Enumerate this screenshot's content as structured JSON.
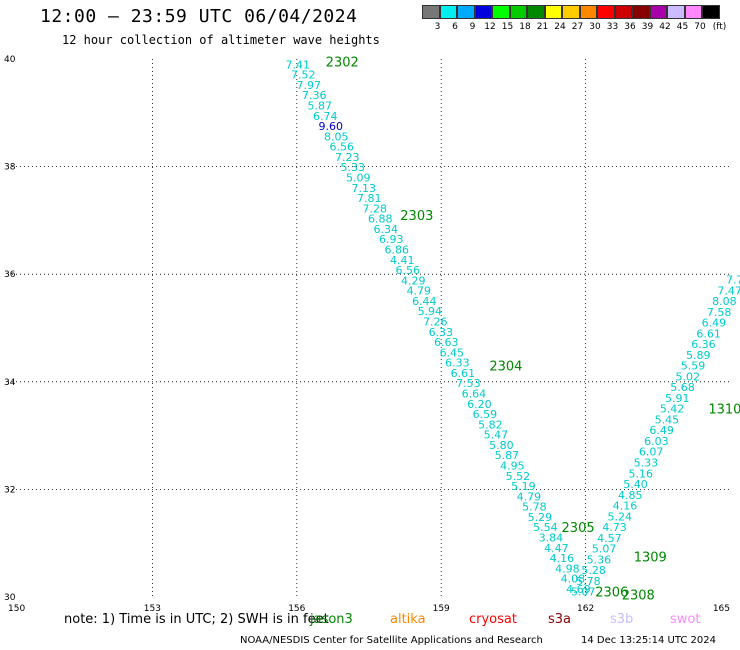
{
  "header": {
    "title": "12:00 – 23:59 UTC 06/04/2024",
    "subtitle": "12 hour collection of altimeter wave heights"
  },
  "legend": {
    "unit": "(ft)",
    "bins": [
      {
        "label": "3",
        "color": "#777777"
      },
      {
        "label": "6",
        "color": "#00eeee"
      },
      {
        "label": "9",
        "color": "#00aaff"
      },
      {
        "label": "12",
        "color": "#0000dd"
      },
      {
        "label": "15",
        "color": "#00ff00"
      },
      {
        "label": "18",
        "color": "#00cc00"
      },
      {
        "label": "21",
        "color": "#008800"
      },
      {
        "label": "24",
        "color": "#ffff00"
      },
      {
        "label": "27",
        "color": "#ffcc00"
      },
      {
        "label": "30",
        "color": "#ff8800"
      },
      {
        "label": "33",
        "color": "#ff0000"
      },
      {
        "label": "36",
        "color": "#cc0000"
      },
      {
        "label": "39",
        "color": "#880000"
      },
      {
        "label": "42",
        "color": "#aa00aa"
      },
      {
        "label": "45",
        "color": "#ccbbff"
      },
      {
        "label": "70",
        "color": "#ff88ff"
      },
      {
        "label": "",
        "color": "#000000"
      }
    ]
  },
  "map": {
    "lon_ticks": [
      "150",
      "153",
      "156",
      "159",
      "162",
      "165"
    ],
    "lat_ticks": [
      "40",
      "38",
      "36",
      "34",
      "32",
      "30"
    ],
    "lon_range": [
      150,
      165
    ],
    "lat_range": [
      30,
      40
    ],
    "grid": "dotted",
    "colors": {
      "swh_label": "#00cccc",
      "swh_high": "#0000cc",
      "pass_label": "#008800"
    }
  },
  "chart_data": {
    "type": "scatter",
    "x_unit": "longitude",
    "y_unit": "latitude",
    "tracks": [
      {
        "name": "descending",
        "start": [
          156.02,
          39.9
        ],
        "end": [
          161.85,
          30.15
        ],
        "values": [
          "7.41",
          "7.52",
          "7.97",
          "7.36",
          "5.87",
          "6.74",
          "9.60",
          "8.05",
          "6.56",
          "7.23",
          "5.33",
          "5.09",
          "7.13",
          "7.81",
          "7.28",
          "6.88",
          "6.34",
          "6.93",
          "6.86",
          "4.41",
          "6.56",
          "4.29",
          "4.79",
          "6.44",
          "5.94",
          "7.26",
          "6.33",
          "6.63",
          "6.45",
          "6.33",
          "6.61",
          "7.53",
          "6.64",
          "6.20",
          "6.59",
          "5.82",
          "5.47",
          "5.80",
          "5.87",
          "4.95",
          "5.52",
          "5.19",
          "4.79",
          "5.78",
          "5.29",
          "5.54",
          "3.84",
          "4.47",
          "4.16",
          "4.98",
          "4.08",
          "4.69"
        ]
      },
      {
        "name": "ascending",
        "start": [
          161.95,
          30.1
        ],
        "end": [
          165.1,
          35.9
        ],
        "values": [
          "5.07",
          "5.78",
          "5.28",
          "5.36",
          "5.07",
          "4.57",
          "4.73",
          "5.24",
          "4.16",
          "4.85",
          "5.40",
          "5.16",
          "5.33",
          "6.07",
          "6.03",
          "6.49",
          "5.45",
          "5.42",
          "5.91",
          "5.68",
          "5.02",
          "5.59",
          "5.89",
          "6.36",
          "6.61",
          "6.49",
          "7.58",
          "8.08",
          "7.47",
          "7.7"
        ]
      }
    ],
    "pass_labels": [
      {
        "text": "2302",
        "lon": 156.6,
        "lat": 39.95
      },
      {
        "text": "2303",
        "lon": 158.15,
        "lat": 37.1
      },
      {
        "text": "2304",
        "lon": 160.0,
        "lat": 34.3
      },
      {
        "text": "2305",
        "lon": 161.5,
        "lat": 31.3
      },
      {
        "text": "2306",
        "lon": 162.2,
        "lat": 30.1
      },
      {
        "text": "2308",
        "lon": 162.75,
        "lat": 30.05
      },
      {
        "text": "1309",
        "lon": 163.0,
        "lat": 30.75
      },
      {
        "text": "1310",
        "lon": 164.55,
        "lat": 33.5
      }
    ]
  },
  "footer": {
    "note": "note:  1) Time is in UTC; 2) SWH is in feet",
    "satellites": [
      {
        "label": "jason3",
        "color": "#008800"
      },
      {
        "label": "altika",
        "color": "#ff8800"
      },
      {
        "label": "cryosat",
        "color": "#ff0000"
      },
      {
        "label": "s3a",
        "color": "#880000"
      },
      {
        "label": "s3b",
        "color": "#ccbbff"
      },
      {
        "label": "swot",
        "color": "#ff88ff"
      }
    ],
    "credit": "NOAA/NESDIS Center for Satellite Applications and Research",
    "timestamp": "14 Dec 13:25:14 UTC 2024"
  }
}
